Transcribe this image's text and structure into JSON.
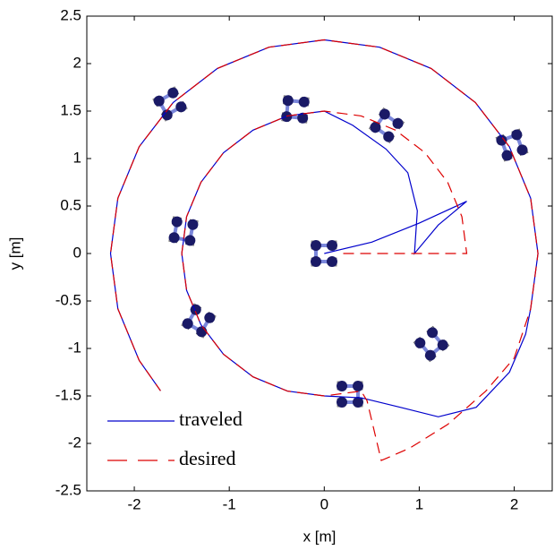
{
  "chart_data": {
    "type": "line",
    "xlabel": "x [m]",
    "ylabel": "y [m]",
    "xlim": [
      -2.5,
      2.4
    ],
    "ylim": [
      -2.5,
      2.5
    ],
    "xticks": [
      -2,
      -1,
      0,
      1,
      2
    ],
    "yticks": [
      -2.5,
      -2,
      -1.5,
      -1,
      -0.5,
      0,
      0.5,
      1,
      1.5,
      2,
      2.5
    ],
    "legend": "lower left",
    "series": [
      {
        "name": "traveled",
        "color": "#0000cc",
        "style": "solid",
        "x": [
          0,
          0.5,
          1.0,
          1.5,
          1.2,
          0.95,
          0.98,
          0.88,
          0.65,
          0.3,
          0,
          -0.388,
          -0.75,
          -1.061,
          -1.299,
          -1.449,
          -1.5,
          -1.449,
          -1.299,
          -1.061,
          -0.75,
          -0.388,
          0,
          0.388,
          0.8,
          1.2,
          1.6,
          1.95,
          2.12,
          2.173,
          2.25,
          2.173,
          1.949,
          1.591,
          1.125,
          0.582,
          0,
          -0.582,
          -1.125,
          -1.591,
          -1.949,
          -2.173,
          -2.25,
          -2.173,
          -1.949,
          -1.724
        ],
        "values": [
          0,
          0.12,
          0.32,
          0.55,
          0.3,
          0,
          0.45,
          0.85,
          1.1,
          1.35,
          1.5,
          1.449,
          1.299,
          1.061,
          0.75,
          0.388,
          0,
          -0.388,
          -0.75,
          -1.061,
          -1.299,
          -1.449,
          -1.5,
          -1.52,
          -1.62,
          -1.72,
          -1.62,
          -1.25,
          -0.85,
          -0.582,
          0,
          0.582,
          1.125,
          1.591,
          1.949,
          2.173,
          2.25,
          2.173,
          1.949,
          1.591,
          1.125,
          0.582,
          0,
          -0.582,
          -1.125,
          -1.446
        ]
      },
      {
        "name": "desired",
        "color": "#dd0000",
        "style": "dashed",
        "x": [
          0.2,
          1.5,
          1.449,
          1.299,
          1.061,
          0.75,
          0.388,
          0,
          -0.388,
          -0.75,
          -1.061,
          -1.299,
          -1.449,
          -1.5,
          -1.449,
          -1.299,
          -1.061,
          -0.75,
          -0.388,
          0,
          0.388,
          0.45,
          0.6,
          0.9,
          1.3,
          1.7,
          2.0,
          2.173,
          2.25,
          2.173,
          1.949,
          1.591,
          1.125,
          0.582,
          0,
          -0.582,
          -1.125,
          -1.591,
          -1.949,
          -2.173,
          -2.25,
          -2.173,
          -1.949,
          -1.724
        ],
        "values": [
          0,
          0,
          0.388,
          0.75,
          1.061,
          1.299,
          1.449,
          1.5,
          1.449,
          1.299,
          1.061,
          0.75,
          0.388,
          0,
          -0.388,
          -0.75,
          -1.061,
          -1.299,
          -1.449,
          -1.5,
          -1.449,
          -1.55,
          -2.18,
          -2.05,
          -1.8,
          -1.45,
          -1.1,
          -0.582,
          0,
          0.582,
          1.125,
          1.591,
          1.949,
          2.173,
          2.25,
          2.173,
          1.949,
          1.591,
          1.125,
          0.582,
          0,
          -0.582,
          -1.125,
          -1.446
        ]
      }
    ]
  }
}
